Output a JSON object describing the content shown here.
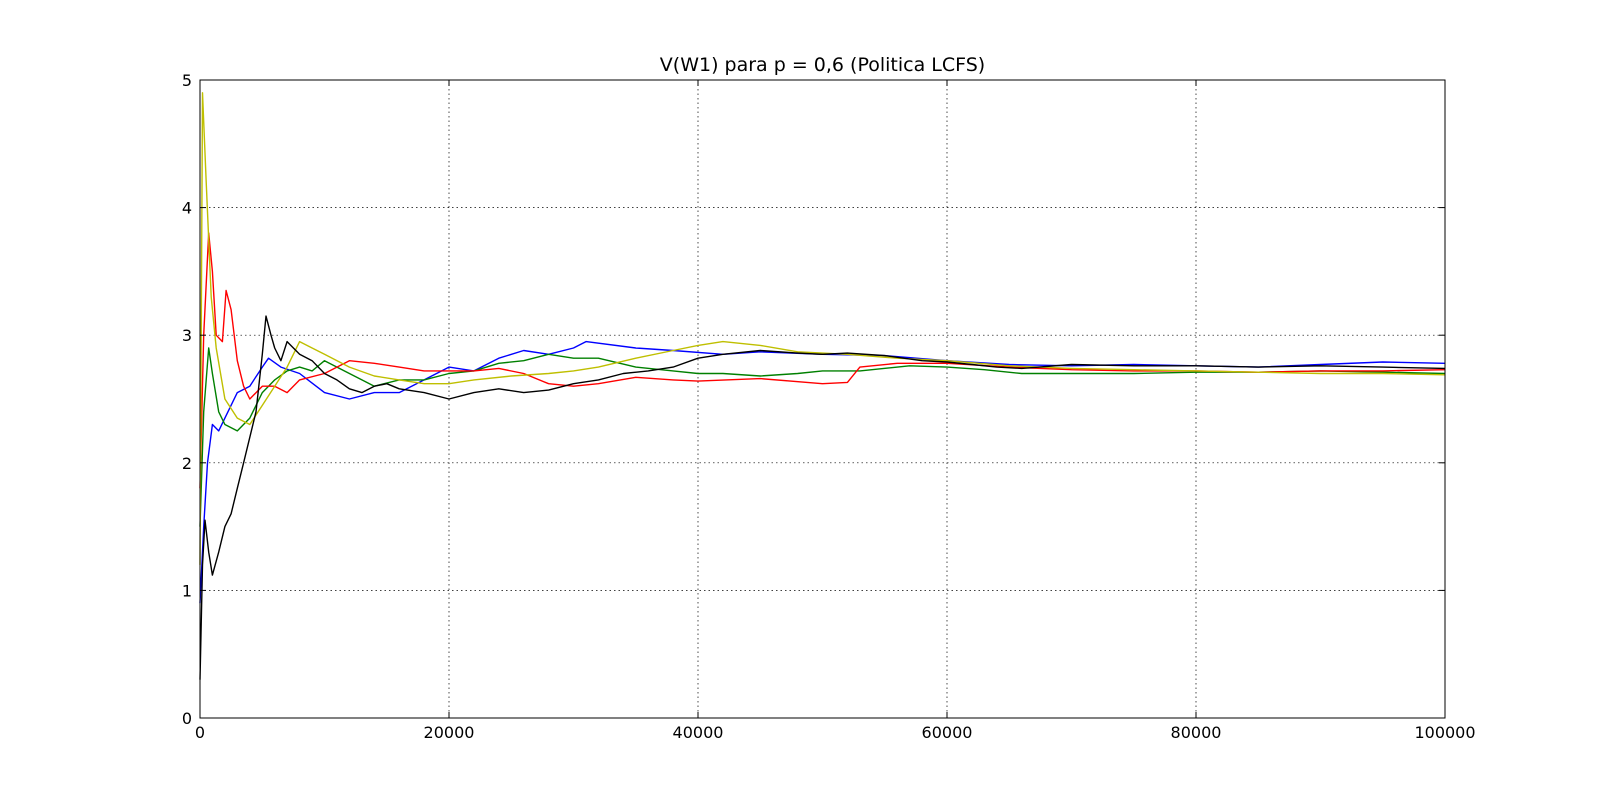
{
  "chart_data": {
    "type": "line",
    "title": "V(W1) para p = 0,6 (Politica LCFS)",
    "xlabel": "",
    "ylabel": "",
    "xlim": [
      0,
      100000
    ],
    "ylim": [
      0,
      5
    ],
    "x_ticks": [
      0,
      20000,
      40000,
      60000,
      80000,
      100000
    ],
    "x_tick_labels": [
      "0",
      "20000",
      "40000",
      "60000",
      "80000",
      "100000"
    ],
    "y_ticks": [
      0,
      1,
      2,
      3,
      4,
      5
    ],
    "y_tick_labels": [
      "0",
      "1",
      "2",
      "3",
      "4",
      "5"
    ],
    "grid": true,
    "legend": "none",
    "series": [
      {
        "color": "#0000ff",
        "points": [
          [
            0,
            0.9
          ],
          [
            300,
            1.5
          ],
          [
            600,
            2.0
          ],
          [
            1000,
            2.3
          ],
          [
            1500,
            2.25
          ],
          [
            2000,
            2.35
          ],
          [
            3000,
            2.55
          ],
          [
            4000,
            2.6
          ],
          [
            5000,
            2.75
          ],
          [
            5500,
            2.82
          ],
          [
            6500,
            2.75
          ],
          [
            8000,
            2.7
          ],
          [
            10000,
            2.55
          ],
          [
            12000,
            2.5
          ],
          [
            14000,
            2.55
          ],
          [
            16000,
            2.55
          ],
          [
            18000,
            2.65
          ],
          [
            20000,
            2.75
          ],
          [
            22000,
            2.72
          ],
          [
            24000,
            2.82
          ],
          [
            26000,
            2.88
          ],
          [
            28000,
            2.85
          ],
          [
            30000,
            2.9
          ],
          [
            31000,
            2.95
          ],
          [
            35000,
            2.9
          ],
          [
            38000,
            2.88
          ],
          [
            42000,
            2.85
          ],
          [
            45000,
            2.87
          ],
          [
            50000,
            2.85
          ],
          [
            55000,
            2.84
          ],
          [
            60000,
            2.8
          ],
          [
            65000,
            2.77
          ],
          [
            70000,
            2.76
          ],
          [
            75000,
            2.77
          ],
          [
            80000,
            2.76
          ],
          [
            85000,
            2.75
          ],
          [
            90000,
            2.77
          ],
          [
            95000,
            2.79
          ],
          [
            100000,
            2.78
          ]
        ]
      },
      {
        "color": "#008000",
        "points": [
          [
            0,
            1.5
          ],
          [
            300,
            2.4
          ],
          [
            700,
            2.9
          ],
          [
            1000,
            2.7
          ],
          [
            1500,
            2.4
          ],
          [
            2000,
            2.3
          ],
          [
            3000,
            2.25
          ],
          [
            4000,
            2.35
          ],
          [
            5000,
            2.55
          ],
          [
            6000,
            2.65
          ],
          [
            7000,
            2.72
          ],
          [
            8000,
            2.75
          ],
          [
            9000,
            2.72
          ],
          [
            10000,
            2.8
          ],
          [
            12000,
            2.7
          ],
          [
            14000,
            2.6
          ],
          [
            16000,
            2.65
          ],
          [
            18000,
            2.65
          ],
          [
            20000,
            2.7
          ],
          [
            22000,
            2.72
          ],
          [
            24000,
            2.78
          ],
          [
            26000,
            2.8
          ],
          [
            28000,
            2.85
          ],
          [
            30000,
            2.82
          ],
          [
            32000,
            2.82
          ],
          [
            35000,
            2.75
          ],
          [
            38000,
            2.72
          ],
          [
            40000,
            2.7
          ],
          [
            42000,
            2.7
          ],
          [
            45000,
            2.68
          ],
          [
            48000,
            2.7
          ],
          [
            50000,
            2.72
          ],
          [
            53000,
            2.72
          ],
          [
            57000,
            2.76
          ],
          [
            60000,
            2.75
          ],
          [
            63000,
            2.73
          ],
          [
            66000,
            2.7
          ],
          [
            70000,
            2.7
          ],
          [
            75000,
            2.7
          ],
          [
            80000,
            2.71
          ],
          [
            85000,
            2.71
          ],
          [
            90000,
            2.72
          ],
          [
            95000,
            2.71
          ],
          [
            100000,
            2.7
          ]
        ]
      },
      {
        "color": "#ff0000",
        "points": [
          [
            0,
            1.8
          ],
          [
            300,
            3.0
          ],
          [
            700,
            3.8
          ],
          [
            1000,
            3.5
          ],
          [
            1300,
            3.0
          ],
          [
            1800,
            2.95
          ],
          [
            2100,
            3.35
          ],
          [
            2500,
            3.2
          ],
          [
            3000,
            2.8
          ],
          [
            3500,
            2.6
          ],
          [
            4000,
            2.5
          ],
          [
            5000,
            2.6
          ],
          [
            6000,
            2.6
          ],
          [
            7000,
            2.55
          ],
          [
            8000,
            2.65
          ],
          [
            10000,
            2.7
          ],
          [
            12000,
            2.8
          ],
          [
            14000,
            2.78
          ],
          [
            16000,
            2.75
          ],
          [
            18000,
            2.72
          ],
          [
            20000,
            2.72
          ],
          [
            22000,
            2.72
          ],
          [
            24000,
            2.74
          ],
          [
            26000,
            2.7
          ],
          [
            28000,
            2.62
          ],
          [
            30000,
            2.6
          ],
          [
            32000,
            2.62
          ],
          [
            35000,
            2.67
          ],
          [
            38000,
            2.65
          ],
          [
            40000,
            2.64
          ],
          [
            45000,
            2.66
          ],
          [
            50000,
            2.62
          ],
          [
            52000,
            2.63
          ],
          [
            53000,
            2.75
          ],
          [
            56000,
            2.78
          ],
          [
            60000,
            2.78
          ],
          [
            65000,
            2.75
          ],
          [
            70000,
            2.73
          ],
          [
            75000,
            2.72
          ],
          [
            80000,
            2.72
          ],
          [
            85000,
            2.71
          ],
          [
            90000,
            2.72
          ],
          [
            95000,
            2.72
          ],
          [
            100000,
            2.73
          ]
        ]
      },
      {
        "color": "#bfbf00",
        "points": [
          [
            0,
            1.2
          ],
          [
            200,
            4.9
          ],
          [
            500,
            4.2
          ],
          [
            900,
            3.3
          ],
          [
            1300,
            2.9
          ],
          [
            2000,
            2.5
          ],
          [
            3000,
            2.35
          ],
          [
            4000,
            2.3
          ],
          [
            5000,
            2.45
          ],
          [
            6000,
            2.6
          ],
          [
            7000,
            2.75
          ],
          [
            8000,
            2.95
          ],
          [
            9000,
            2.9
          ],
          [
            10000,
            2.85
          ],
          [
            12000,
            2.75
          ],
          [
            14000,
            2.68
          ],
          [
            16000,
            2.65
          ],
          [
            18000,
            2.62
          ],
          [
            20000,
            2.62
          ],
          [
            22000,
            2.65
          ],
          [
            25000,
            2.68
          ],
          [
            28000,
            2.7
          ],
          [
            30000,
            2.72
          ],
          [
            32000,
            2.75
          ],
          [
            35000,
            2.82
          ],
          [
            38000,
            2.88
          ],
          [
            40000,
            2.92
          ],
          [
            42000,
            2.95
          ],
          [
            45000,
            2.92
          ],
          [
            48000,
            2.87
          ],
          [
            52000,
            2.85
          ],
          [
            56000,
            2.82
          ],
          [
            60000,
            2.8
          ],
          [
            65000,
            2.76
          ],
          [
            70000,
            2.74
          ],
          [
            75000,
            2.73
          ],
          [
            80000,
            2.72
          ],
          [
            85000,
            2.71
          ],
          [
            90000,
            2.7
          ],
          [
            95000,
            2.7
          ],
          [
            100000,
            2.69
          ]
        ]
      },
      {
        "color": "#000000",
        "points": [
          [
            0,
            0.3
          ],
          [
            200,
            1.2
          ],
          [
            400,
            1.55
          ],
          [
            700,
            1.3
          ],
          [
            1000,
            1.12
          ],
          [
            1500,
            1.3
          ],
          [
            2000,
            1.5
          ],
          [
            2500,
            1.6
          ],
          [
            3000,
            1.8
          ],
          [
            3500,
            2.0
          ],
          [
            4000,
            2.2
          ],
          [
            4500,
            2.4
          ],
          [
            5000,
            2.85
          ],
          [
            5300,
            3.15
          ],
          [
            5700,
            3.0
          ],
          [
            6000,
            2.9
          ],
          [
            6500,
            2.8
          ],
          [
            7000,
            2.95
          ],
          [
            7500,
            2.9
          ],
          [
            8000,
            2.85
          ],
          [
            9000,
            2.8
          ],
          [
            10000,
            2.7
          ],
          [
            11000,
            2.65
          ],
          [
            12000,
            2.58
          ],
          [
            13000,
            2.55
          ],
          [
            14000,
            2.6
          ],
          [
            15000,
            2.62
          ],
          [
            16000,
            2.58
          ],
          [
            18000,
            2.55
          ],
          [
            20000,
            2.5
          ],
          [
            22000,
            2.55
          ],
          [
            24000,
            2.58
          ],
          [
            26000,
            2.55
          ],
          [
            28000,
            2.57
          ],
          [
            30000,
            2.62
          ],
          [
            32000,
            2.65
          ],
          [
            34000,
            2.7
          ],
          [
            36000,
            2.72
          ],
          [
            38000,
            2.75
          ],
          [
            40000,
            2.82
          ],
          [
            42000,
            2.85
          ],
          [
            45000,
            2.88
          ],
          [
            48000,
            2.86
          ],
          [
            50000,
            2.85
          ],
          [
            52000,
            2.86
          ],
          [
            55000,
            2.84
          ],
          [
            58000,
            2.8
          ],
          [
            60000,
            2.79
          ],
          [
            62000,
            2.77
          ],
          [
            64000,
            2.75
          ],
          [
            66000,
            2.74
          ],
          [
            70000,
            2.77
          ],
          [
            75000,
            2.76
          ],
          [
            80000,
            2.76
          ],
          [
            85000,
            2.75
          ],
          [
            90000,
            2.76
          ],
          [
            95000,
            2.75
          ],
          [
            100000,
            2.74
          ]
        ]
      }
    ]
  }
}
